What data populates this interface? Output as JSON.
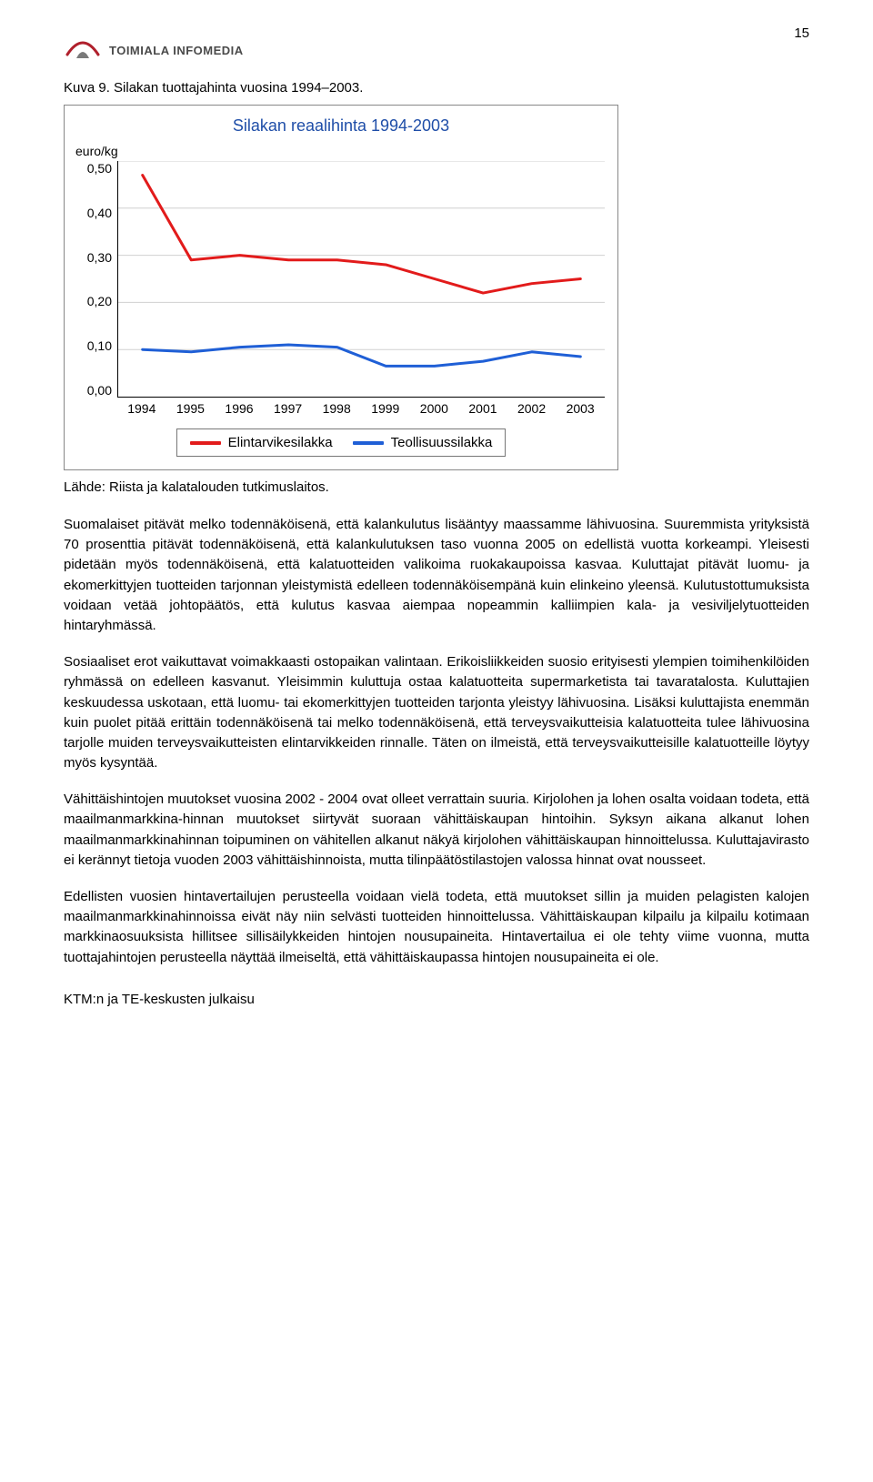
{
  "page_number": "15",
  "logo": {
    "text": "TOIMIALA INFOMEDIA",
    "arc_color": "#b0202c",
    "wedge_color": "#7a7a7a"
  },
  "figure": {
    "caption": "Kuva 9. Silakan tuottajahinta vuosina 1994–2003.",
    "title": "Silakan reaalihinta 1994-2003",
    "title_color": "#1f4ea8",
    "y_unit": "euro/kg",
    "x_labels": [
      "1994",
      "1995",
      "1996",
      "1997",
      "1998",
      "1999",
      "2000",
      "2001",
      "2002",
      "2003"
    ],
    "y_ticks": [
      "0,50",
      "0,40",
      "0,30",
      "0,20",
      "0,10",
      "0,00"
    ],
    "ylim": [
      0,
      0.5
    ],
    "grid_color": "#d0d0d0",
    "background_color": "#ffffff",
    "line_width": 3,
    "series": [
      {
        "name": "Elintarvikesilakka",
        "color": "#e21b1b",
        "values": [
          0.47,
          0.29,
          0.3,
          0.29,
          0.29,
          0.28,
          0.25,
          0.22,
          0.24,
          0.25
        ]
      },
      {
        "name": "Teollisuussilakka",
        "color": "#1f5fd6",
        "values": [
          0.1,
          0.095,
          0.105,
          0.11,
          0.105,
          0.065,
          0.065,
          0.075,
          0.095,
          0.085
        ]
      }
    ],
    "legend_border": "#777777"
  },
  "source_line": "Lähde: Riista ja kalatalouden tutkimuslaitos.",
  "paragraphs": [
    "Suomalaiset pitävät melko todennäköisenä, että kalankulutus lisääntyy maassamme lähivuosina. Suuremmista yrityksistä 70 prosenttia pitävät todennäköisenä, että kalankulutuksen taso vuonna 2005 on edellistä vuotta korkeampi. Yleisesti pidetään myös todennäköisenä, että kalatuotteiden valikoima ruokakaupoissa kasvaa. Kuluttajat pitävät luomu- ja ekomerkittyjen tuotteiden tarjonnan yleistymistä edelleen todennäköisempänä kuin elinkeino yleensä. Kulutustottumuksista voidaan vetää johtopäätös, että kulutus kasvaa aiempaa nopeammin kalliimpien kala- ja vesiviljelytuotteiden hintaryhmässä.",
    "Sosiaaliset erot vaikuttavat voimakkaasti ostopaikan valintaan. Erikoisliikkeiden suosio erityisesti ylempien toimihenkilöiden ryhmässä on edelleen kasvanut. Yleisimmin kuluttuja ostaa kalatuotteita supermarketista tai tavaratalosta. Kuluttajien keskuudessa uskotaan, että luomu- tai ekomerkittyjen tuotteiden tarjonta yleistyy lähivuosina. Lisäksi kuluttajista enemmän kuin puolet pitää erittäin todennäköisenä tai melko todennäköisenä, että terveysvaikutteisia kalatuotteita tulee lähivuosina tarjolle muiden terveysvaikutteisten elintarvikkeiden rinnalle. Täten on ilmeistä, että terveysvaikutteisille kalatuotteille löytyy myös kysyntää.",
    "Vähittäishintojen muutokset vuosina 2002 - 2004 ovat olleet verrattain suuria. Kirjolohen ja lohen osalta voidaan todeta, että maailmanmarkkina-hinnan muutokset siirtyvät suoraan vähittäiskaupan hintoihin. Syksyn aikana alkanut lohen maailmanmarkkinahinnan toipuminen on vähitellen alkanut näkyä kirjolohen vähittäiskaupan hinnoittelussa. Kuluttajavirasto ei kerännyt tietoja vuoden 2003 vähittäishinnoista, mutta tilinpäätöstilastojen valossa hinnat ovat nousseet.",
    "Edellisten vuosien hintavertailujen perusteella voidaan vielä todeta, että muutokset sillin ja muiden pelagisten kalojen maailmanmarkkinahinnoissa eivät näy niin selvästi tuotteiden hinnoittelussa. Vähittäiskaupan kilpailu ja kilpailu kotimaan markkinaosuuksista hillitsee sillisäilykkeiden hintojen nousupaineita. Hintavertailua ei ole tehty viime vuonna, mutta tuottajahintojen perusteella näyttää ilmeiseltä, että vähittäiskaupassa hintojen nousupaineita ei ole."
  ],
  "footer": "KTM:n ja TE-keskusten julkaisu"
}
